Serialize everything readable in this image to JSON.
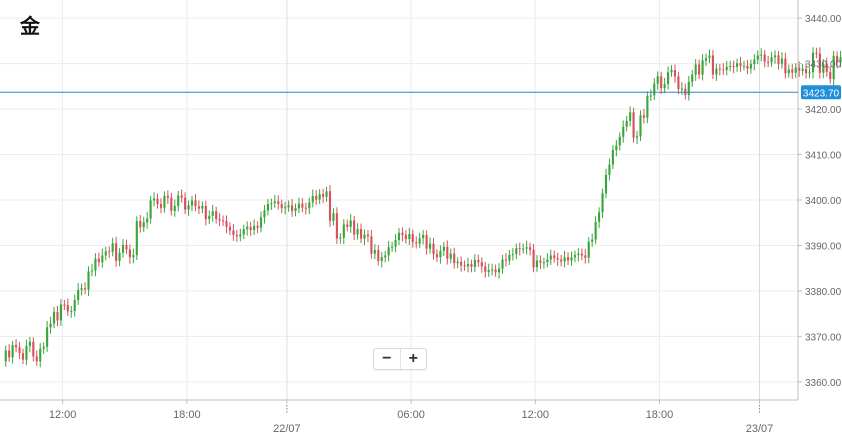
{
  "title": "金",
  "zoom": {
    "minus": "−",
    "plus": "+"
  },
  "colors": {
    "up": "#3aa53a",
    "down": "#d8505c",
    "price_line": "#2e86c1",
    "price_badge": "#1f8fd8",
    "grid": "#ececec",
    "axis": "#bfbfbf",
    "label": "#666666"
  },
  "chart_data": {
    "type": "candlestick",
    "title": "金",
    "y_ticks": [
      "3360.00",
      "3370.00",
      "3380.00",
      "3390.00",
      "3400.00",
      "3410.00",
      "3420.00",
      "3430.00",
      "3440.00"
    ],
    "ylim": [
      3356,
      3444
    ],
    "x_ticks": [
      {
        "label": "12:00",
        "t": 17
      },
      {
        "label": "18:00",
        "t": 53
      },
      {
        "label": "22/07",
        "t": 82,
        "date": true
      },
      {
        "label": "06:00",
        "t": 118
      },
      {
        "label": "12:00",
        "t": 154
      },
      {
        "label": "18:00",
        "t": 190
      },
      {
        "label": "23/07",
        "t": 219,
        "date": true
      }
    ],
    "xlim": [
      0,
      229
    ],
    "current_price": "3423.70",
    "candles_oc": [
      3364.5,
      3366.9,
      3365.4,
      3368.1,
      3367.6,
      3366.3,
      3364.9,
      3367.9,
      3368.8,
      3365.6,
      3364.5,
      3367.3,
      3367.7,
      3372.0,
      3372.8,
      3375.4,
      3373.5,
      3377.0,
      3376.9,
      3375.5,
      3375.6,
      3378.0,
      3380.2,
      3380.6,
      3380.3,
      3384.3,
      3384.5,
      3387.1,
      3386.3,
      3387.8,
      3388.7,
      3388.6,
      3390.5,
      3386.6,
      3388.4,
      3390.1,
      3389.1,
      3387.4,
      3387.9,
      3395.4,
      3394.0,
      3395.1,
      3395.9,
      3399.9,
      3400.3,
      3399.1,
      3398.3,
      3400.9,
      3400.5,
      3397.6,
      3398.7,
      3401.0,
      3400.5,
      3397.9,
      3398.8,
      3399.9,
      3398.6,
      3398.1,
      3398.7,
      3395.8,
      3396.5,
      3397.5,
      3395.8,
      3395.5,
      3395.4,
      3394.1,
      3393.3,
      3392.3,
      3392.0,
      3392.4,
      3393.6,
      3394.1,
      3393.4,
      3394.3,
      3393.9,
      3396.2,
      3397.7,
      3399.1,
      3399.3,
      3399.7,
      3399.1,
      3398.2,
      3398.4,
      3398.8,
      3397.6,
      3398.2,
      3399.2,
      3398.3,
      3398.2,
      3399.5,
      3400.9,
      3400.1,
      3401.3,
      3400.7,
      3401.9,
      3395.4,
      3397.1,
      3391.5,
      3391.7,
      3394.6,
      3394.1,
      3395.5,
      3392.4,
      3393.6,
      3391.5,
      3392.4,
      3392.0,
      3388.2,
      3389.0,
      3386.6,
      3387.4,
      3387.8,
      3389.6,
      3389.7,
      3391.2,
      3392.8,
      3392.3,
      3391.4,
      3392.5,
      3390.7,
      3390.4,
      3391.6,
      3392.3,
      3389.3,
      3390.4,
      3388.1,
      3387.4,
      3388.8,
      3389.7,
      3387.1,
      3388.2,
      3386.1,
      3386.4,
      3385.6,
      3385.4,
      3385.9,
      3385.3,
      3386.8,
      3386.3,
      3385.4,
      3384.2,
      3384.6,
      3384.7,
      3384.1,
      3384.9,
      3386.9,
      3386.7,
      3387.9,
      3388.1,
      3389.4,
      3389.2,
      3389.3,
      3389.6,
      3389.0,
      3385.2,
      3386.7,
      3386.2,
      3386.3,
      3386.9,
      3387.8,
      3387.2,
      3386.9,
      3386.5,
      3387.4,
      3386.7,
      3387.4,
      3387.9,
      3388.2,
      3387.8,
      3387.3,
      3390.8,
      3391.3,
      3395.2,
      3397.3,
      3401.5,
      3405.5,
      3407.8,
      3411.0,
      3412.0,
      3413.9,
      3416.1,
      3417.4,
      3419.3,
      3413.7,
      3414.0,
      3418.6,
      3418.1,
      3422.9,
      3423.0,
      3425.6,
      3427.2,
      3424.6,
      3425.5,
      3428.1,
      3428.6,
      3427.2,
      3424.4,
      3424.5,
      3423.1,
      3426.0,
      3427.6,
      3429.8,
      3427.6,
      3430.7,
      3431.2,
      3431.8,
      3427.6,
      3428.9,
      3428.7,
      3428.6,
      3429.3,
      3429.5,
      3429.3,
      3430.1,
      3429.5,
      3429.5,
      3428.9,
      3429.9,
      3430.9,
      3431.8,
      3432.0,
      3430.4,
      3430.3,
      3431.4,
      3431.8,
      3430.0,
      3431.1,
      3427.9,
      3428.7,
      3428.0,
      3429.1,
      3428.4,
      3428.8,
      3427.9,
      3428.1,
      3432.4,
      3432.2,
      3428.0,
      3430.0,
      3428.2,
      3426.6,
      3431.7,
      3430.3,
      3431.4,
      3432.5,
      3429.2,
      3429.3,
      3426.9,
      3423.7
    ],
    "wick_hi": [
      1.0,
      1.4,
      0.9,
      1.3,
      1.2,
      1.0,
      1.4,
      1.1,
      1.0,
      1.3,
      1.2,
      1.0,
      1.4,
      1.5,
      1.1,
      1.3,
      1.2,
      1.0,
      1.4,
      1.1,
      1.2,
      1.5,
      1.0,
      1.3,
      1.1,
      1.4,
      1.2,
      1.3,
      1.5,
      1.0,
      1.1,
      1.2,
      1.4,
      1.0,
      1.3,
      1.2,
      1.1,
      1.4,
      1.0,
      1.3,
      1.2,
      1.5,
      1.0,
      1.4,
      1.1,
      1.3,
      1.0,
      1.2,
      1.1,
      1.4,
      1.0,
      1.3,
      1.2,
      1.1,
      1.0,
      1.4,
      1.3,
      1.0,
      1.1,
      1.2,
      1.4,
      1.0,
      1.3,
      1.1,
      1.2,
      1.0,
      1.4,
      1.1,
      1.3,
      1.0,
      1.2,
      1.1,
      1.4,
      1.0,
      1.3,
      1.2,
      1.1,
      1.0,
      1.4,
      1.3,
      1.0,
      1.2,
      1.1,
      1.4,
      1.0,
      1.3,
      1.2,
      1.1,
      1.0,
      1.4,
      1.3,
      1.1,
      1.2,
      1.0,
      1.4,
      1.1,
      1.3,
      1.0,
      1.2,
      1.1,
      1.4,
      1.0,
      1.3,
      1.2,
      1.1,
      1.0,
      1.4,
      1.3,
      1.1,
      1.2,
      1.0,
      1.4,
      1.1,
      1.3,
      1.0,
      1.2,
      1.1,
      1.4,
      1.0,
      1.3,
      1.2,
      1.1,
      1.0,
      1.4,
      1.3,
      1.1,
      1.2,
      1.0,
      1.4,
      1.1,
      1.3,
      1.0,
      1.2,
      1.1,
      1.4,
      1.0,
      1.3,
      1.2,
      1.1,
      1.0,
      1.4,
      1.3,
      1.1,
      1.2,
      1.0,
      1.4,
      1.1,
      1.3,
      1.0,
      1.2,
      1.1,
      1.4,
      1.0,
      1.3,
      1.2,
      1.1,
      1.0,
      1.4,
      1.3,
      1.1,
      1.2,
      1.0,
      1.4,
      1.1,
      1.3,
      1.0,
      1.2,
      1.1,
      1.4,
      1.0,
      1.3,
      1.2,
      1.1,
      1.0,
      1.4,
      1.3,
      1.1,
      1.2,
      1.0,
      1.4,
      1.1,
      1.3,
      1.0,
      1.2,
      1.1,
      1.4,
      1.0,
      1.3,
      1.2,
      1.1,
      1.0,
      1.4,
      1.3,
      1.1,
      1.2,
      1.0,
      1.4,
      1.1,
      1.3,
      1.0,
      1.2,
      1.1,
      1.4,
      1.0,
      1.3,
      1.2,
      1.1,
      1.0,
      1.4,
      1.3,
      1.1,
      1.2,
      1.0,
      1.4,
      1.1,
      1.3,
      1.0,
      1.2,
      1.1,
      1.4,
      1.0,
      1.3,
      1.2,
      1.1,
      1.0,
      1.4,
      1.3,
      1.1,
      1.2,
      1.0,
      1.4,
      1.1,
      1.3,
      1.0,
      1.2,
      1.1,
      1.4,
      1.0,
      1.3,
      1.2,
      1.1,
      1.0,
      1.4,
      1.3,
      1.1,
      1.2,
      1.0,
      1.4,
      1.1,
      1.3,
      1.0,
      1.2,
      1.1,
      1.4,
      1.0,
      1.3,
      1.2,
      1.1,
      1.0,
      1.4,
      1.3,
      1.1
    ],
    "wick_lo": [
      1.2,
      1.0,
      1.4,
      1.1,
      1.3,
      1.0,
      1.2,
      1.4,
      1.1,
      1.0,
      1.3,
      1.2,
      1.1,
      1.4,
      1.0,
      1.3,
      1.2,
      1.1,
      1.0,
      1.4,
      1.3,
      1.1,
      1.2,
      1.0,
      1.4,
      1.1,
      1.3,
      1.0,
      1.2,
      1.1,
      1.4,
      1.0,
      1.3,
      1.2,
      1.1,
      1.0,
      1.4,
      1.3,
      1.1,
      1.2,
      1.0,
      1.4,
      1.1,
      1.3,
      1.0,
      1.2,
      1.1,
      1.4,
      1.0,
      1.3,
      1.2,
      1.1,
      1.0,
      1.4,
      1.3,
      1.1,
      1.2,
      1.0,
      1.4,
      1.1,
      1.3,
      1.0,
      1.2,
      1.1,
      1.4,
      1.0,
      1.3,
      1.2,
      1.1,
      1.0,
      1.4,
      1.3,
      1.1,
      1.2,
      1.0,
      1.4,
      1.1,
      1.3,
      1.0,
      1.2,
      1.1,
      1.4,
      1.0,
      1.3,
      1.2,
      1.1,
      1.0,
      1.4,
      1.3,
      1.1,
      1.2,
      1.0,
      1.4,
      1.1,
      1.3,
      1.0,
      1.2,
      1.1,
      1.4,
      1.0,
      1.3,
      1.2,
      1.1,
      1.0,
      1.4,
      1.3,
      1.1,
      1.2,
      1.0,
      1.4,
      1.1,
      1.3,
      1.0,
      1.2,
      1.1,
      1.4,
      1.0,
      1.3,
      1.2,
      1.1,
      1.0,
      1.4,
      1.3,
      1.1,
      1.2,
      1.0,
      1.4,
      1.1,
      1.3,
      1.0,
      1.2,
      1.1,
      1.4,
      1.0,
      1.3,
      1.2,
      1.1,
      1.0,
      1.4,
      1.3,
      1.1,
      1.2,
      1.0,
      1.4,
      1.1,
      1.3,
      1.0,
      1.2,
      1.1,
      1.4,
      1.0,
      1.3,
      1.2,
      1.1,
      1.0,
      1.4,
      1.3,
      1.1,
      1.2,
      1.0,
      1.4,
      1.1,
      1.3,
      1.0,
      1.2,
      1.1,
      1.4,
      1.0,
      1.3,
      1.2,
      1.1,
      1.0,
      1.4,
      1.3,
      1.1,
      1.2,
      1.0,
      1.4,
      1.1,
      1.3,
      1.0,
      1.2,
      1.1,
      1.4,
      1.0,
      1.3,
      1.2,
      1.1,
      1.0,
      1.4,
      1.3,
      1.1,
      1.2,
      1.0,
      1.4,
      1.1,
      1.3,
      1.0,
      1.2,
      1.1,
      1.4,
      1.0,
      1.3,
      1.2,
      1.1,
      1.0,
      1.4,
      1.3,
      1.1,
      1.2,
      1.0,
      1.4,
      1.1,
      1.3,
      1.0,
      1.2,
      1.1,
      1.4,
      1.0,
      1.3,
      1.2,
      1.1,
      1.0,
      1.4,
      1.3,
      1.1,
      1.2,
      1.0,
      1.4,
      1.1,
      1.3,
      1.0,
      1.2,
      1.1,
      1.4,
      1.0,
      1.3,
      1.2,
      1.1,
      1.0,
      1.4,
      1.3,
      1.1,
      1.2,
      1.0,
      1.4,
      1.1,
      1.3
    ]
  }
}
